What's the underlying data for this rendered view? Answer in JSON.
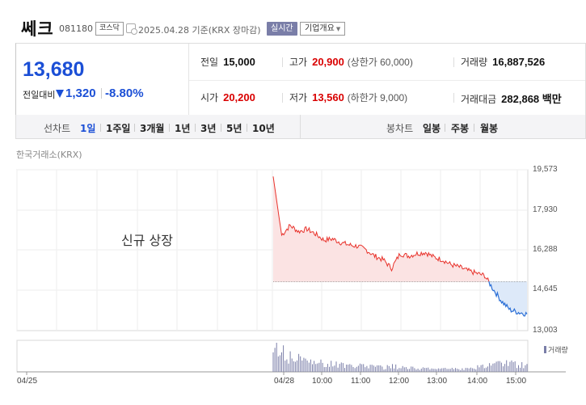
{
  "header": {
    "name": "쎄크",
    "code": "081180",
    "market": "코스닥",
    "date_text": "2025.04.28  기준(KRX 장마감)",
    "realtime_label": "실시간",
    "company_label": "기업개요"
  },
  "quote": {
    "price": "13,680",
    "change_label": "전일대비",
    "change_amount": "1,320",
    "change_percent": "-8.80%",
    "prev_close_label": "전일",
    "prev_close": "15,000",
    "high_label": "고가",
    "high": "20,900",
    "upper_limit": "(상한가 60,000)",
    "volume_label": "거래량",
    "volume": "16,887,526",
    "open_label": "시가",
    "open": "20,200",
    "low_label": "저가",
    "low": "13,560",
    "lower_limit": "(하한가 9,000)",
    "value_label": "거래대금",
    "value": "282,868 백만"
  },
  "tabs": {
    "line_label": "선차트",
    "line_periods": [
      "1일",
      "1주일",
      "3개월",
      "1년",
      "3년",
      "5년",
      "10년"
    ],
    "active_period": "1일",
    "candle_label": "봉차트",
    "candle_periods": [
      "일봉",
      "주봉",
      "월봉"
    ]
  },
  "chart": {
    "source": "한국거래소(KRX)",
    "annotation": "신규 상장",
    "volume_legend": "거래량",
    "colors": {
      "up": "#e8332c",
      "down": "#2b6fd6",
      "volume": "#7a7ea8"
    }
  },
  "chart_data": {
    "type": "line",
    "title": "",
    "y_ticks": [
      "19,573",
      "17,930",
      "16,288",
      "14,645",
      "13,003"
    ],
    "x_ticks": [
      "04/25",
      "04/28",
      "10:00",
      "11:00",
      "12:00",
      "13:00",
      "14:00",
      "15:00"
    ],
    "ylim": [
      13003,
      19573
    ],
    "reference_price": 15000,
    "series": [
      {
        "x": [
          "09:00",
          "09:05",
          "09:10",
          "09:20",
          "09:30",
          "09:45",
          "10:00",
          "10:15",
          "10:30",
          "10:45",
          "11:00",
          "11:15",
          "11:30",
          "11:45",
          "12:00",
          "12:10",
          "12:20",
          "12:35",
          "12:50",
          "13:00",
          "13:15",
          "13:30",
          "13:45",
          "14:00",
          "14:15",
          "14:30",
          "14:45",
          "15:00",
          "15:10",
          "15:20",
          "15:30"
        ],
        "values": [
          19300,
          16900,
          17300,
          17050,
          17150,
          16950,
          16700,
          16750,
          16600,
          16500,
          16450,
          16300,
          16050,
          15900,
          15550,
          16150,
          16050,
          16150,
          16200,
          16000,
          15900,
          15700,
          15600,
          15450,
          15350,
          15250,
          14700,
          14200,
          13850,
          13750,
          13680
        ]
      }
    ],
    "volume_values": [
      95,
      80,
      60,
      50,
      45,
      40,
      38,
      30,
      28,
      25,
      24,
      22,
      20,
      18,
      22,
      20,
      16,
      15,
      14,
      13,
      12,
      12,
      14,
      16,
      18,
      22,
      30,
      35,
      32,
      28,
      25
    ]
  }
}
